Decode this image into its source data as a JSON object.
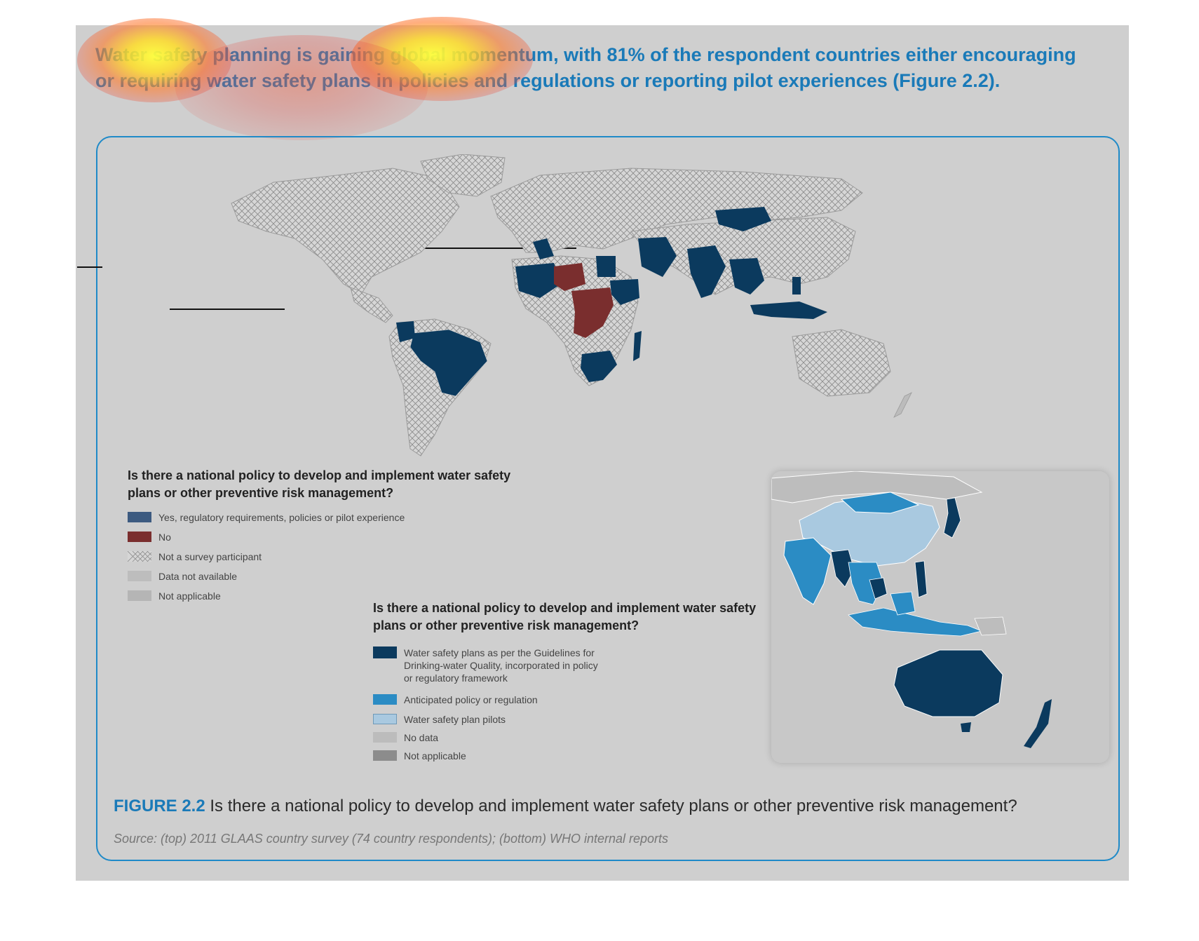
{
  "colors": {
    "panel_bg": "#cfcfcf",
    "accent_blue": "#1a7ab8",
    "frame_blue": "#1f8ac8",
    "map_yes": "#0b3a5e",
    "map_no": "#7a2e2e",
    "map_anticipated": "#2b8cc4",
    "map_pilots": "#a9c9e0",
    "map_nodata": "#bcbcbc",
    "map_not_applicable": "#8c8c8c"
  },
  "headline": "Water safety planning is gaining global momentum, with 81% of the respondent countries either encouraging or requiring water safety plans in policies and regulations or reporting pilot experiences (Figure 2.2).",
  "world_map": {
    "legend_title": "Is there a national policy to develop and implement water safety plans or other preventive risk management?",
    "legend": [
      {
        "label": "Yes, regulatory requirements, policies or pilot experience",
        "color": "#3c5a80",
        "pattern": "solid"
      },
      {
        "label": "No",
        "color": "#7a2e2e",
        "pattern": "solid"
      },
      {
        "label": "Not a survey participant",
        "color": "#cfcfcf",
        "pattern": "crosshatch"
      },
      {
        "label": "Data not available",
        "color": "#bdbdbd",
        "pattern": "solid"
      },
      {
        "label": "Not applicable",
        "color": "#b5b5b5",
        "pattern": "solid"
      }
    ]
  },
  "inset_map": {
    "legend_title": "Is there a national policy to develop and implement water safety plans or other preventive risk management?",
    "legend": [
      {
        "label": "Water safety plans as per the Guidelines for Drinking-water Quality, incorporated in policy or regulatory framework",
        "color": "#0b3a5e"
      },
      {
        "label": "Anticipated policy or regulation",
        "color": "#2b8cc4"
      },
      {
        "label": "Water safety plan pilots",
        "color": "#a9c9e0"
      },
      {
        "label": "No data",
        "color": "#bcbcbc"
      },
      {
        "label": "Not applicable",
        "color": "#8c8c8c"
      }
    ]
  },
  "caption": {
    "label": "FIGURE 2.2",
    "text": "Is there a national policy to develop and implement water safety plans or other preventive risk management?"
  },
  "source": "Source: (top) 2011 GLAAS country survey (74 country respondents); (bottom) WHO internal reports"
}
